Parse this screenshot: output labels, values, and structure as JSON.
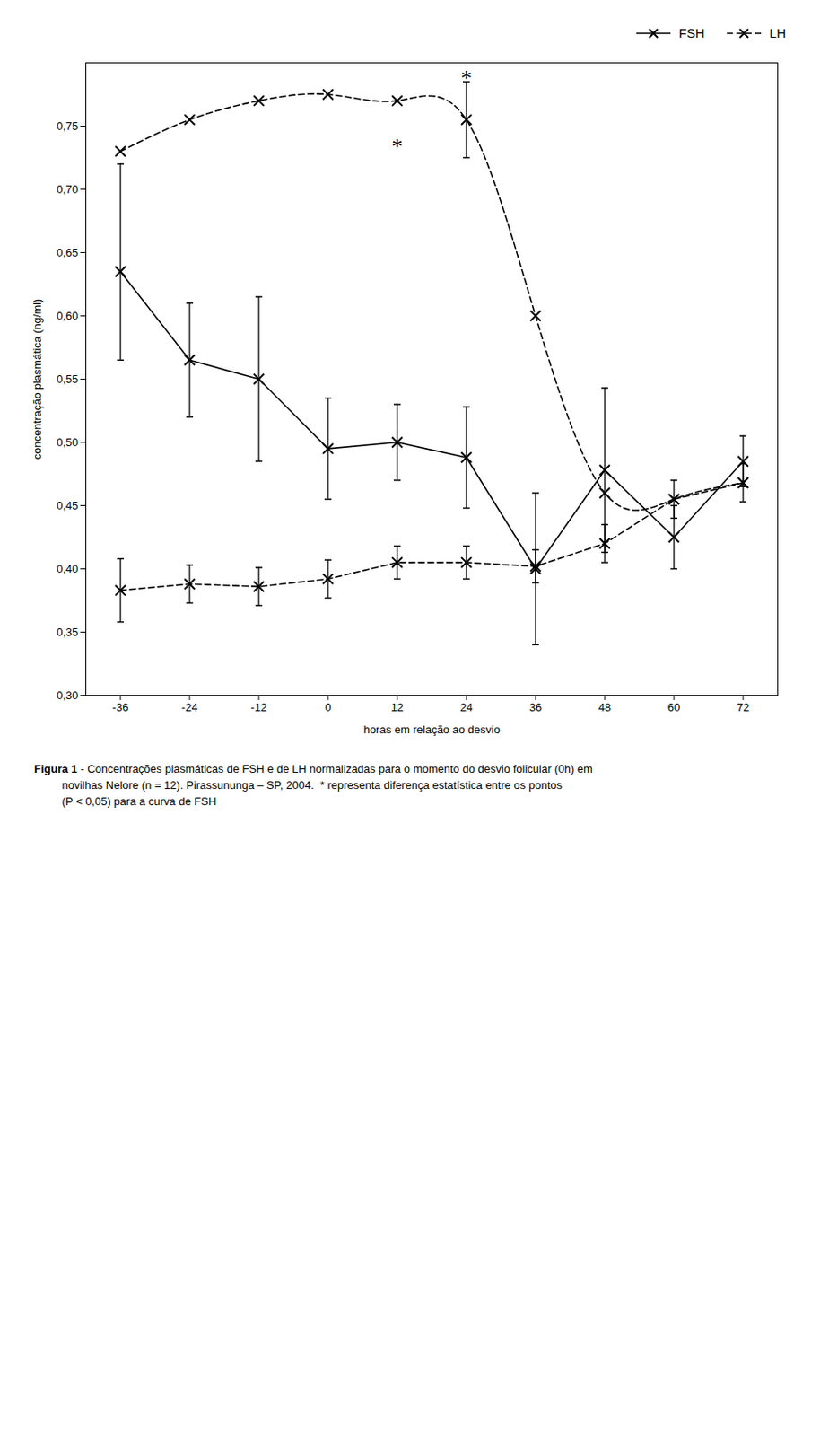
{
  "chart_data": {
    "type": "line",
    "xlabel": "horas em relação ao desvio",
    "ylabel": "concentração plasmática (ng/ml)",
    "x": [
      -36,
      -24,
      -12,
      0,
      12,
      24,
      36,
      48,
      60,
      72
    ],
    "xlim": [
      -42,
      78
    ],
    "xticks": [
      -36,
      -24,
      -12,
      0,
      12,
      24,
      36,
      48,
      60,
      72
    ],
    "ylim": [
      0.3,
      0.8
    ],
    "yticks": [
      {
        "value": 0.3,
        "label": "0,30"
      },
      {
        "value": 0.35,
        "label": "0,35"
      },
      {
        "value": 0.4,
        "label": "0,40"
      },
      {
        "value": 0.45,
        "label": "0,45"
      },
      {
        "value": 0.5,
        "label": "0,50"
      },
      {
        "value": 0.55,
        "label": "0,55"
      },
      {
        "value": 0.6,
        "label": "0,60"
      },
      {
        "value": 0.65,
        "label": "0,65"
      },
      {
        "value": 0.7,
        "label": "0,70"
      },
      {
        "value": 0.75,
        "label": "0,75"
      }
    ],
    "grid": false,
    "legend": "upper right",
    "series": [
      {
        "name": "FSH",
        "type": "line",
        "color": "#000000",
        "marker": "x",
        "line_style": "solid",
        "values": [
          0.635,
          0.565,
          0.55,
          0.495,
          0.5,
          0.488,
          0.4,
          0.478,
          0.425,
          0.485
        ],
        "yerr_low": [
          0.07,
          0.045,
          0.065,
          0.04,
          0.03,
          0.04,
          0.06,
          0.065,
          0.025,
          0.02
        ],
        "yerr_high": [
          0.085,
          0.045,
          0.065,
          0.04,
          0.03,
          0.04,
          0.06,
          0.065,
          0.025,
          0.02
        ]
      },
      {
        "name": "LH",
        "type": "line",
        "color": "#000000",
        "marker": "x",
        "line_style": "dashed",
        "values": [
          0.383,
          0.388,
          0.386,
          0.392,
          0.405,
          0.405,
          0.402,
          0.42,
          0.455,
          0.468
        ],
        "yerr_low": [
          0.025,
          0.015,
          0.015,
          0.015,
          0.013,
          0.013,
          0.013,
          0.015,
          0.015,
          0.015
        ],
        "yerr_high": [
          0.025,
          0.015,
          0.015,
          0.015,
          0.013,
          0.013,
          0.013,
          0.015,
          0.015,
          0.015
        ]
      },
      {
        "name": "LH",
        "type": "spline",
        "color": "#000000",
        "marker": "x",
        "line_style": "dashed",
        "values": [
          0.73,
          0.755,
          0.77,
          0.775,
          0.77,
          0.755,
          0.6,
          0.46,
          0.455,
          0.468
        ],
        "yerr_low": [
          null,
          null,
          null,
          null,
          null,
          0.03,
          null,
          null,
          null,
          null
        ],
        "yerr_high": [
          null,
          null,
          null,
          null,
          null,
          0.03,
          null,
          null,
          null,
          null
        ]
      }
    ],
    "annotations": [
      {
        "text": "*",
        "x": 12,
        "y": 0.728
      },
      {
        "text": "*",
        "x": 24,
        "y": 0.782
      }
    ],
    "caption_label": "Figura 1",
    "caption": " - Concentrações plasmáticas de FSH e de LH normalizadas para o momento do desvio folicular (0h) em\n         novilhas Nelore (n = 12). Pirassununga – SP, 2004.  * representa diferença estatística entre os pontos\n         (P < 0,05) para a curva de FSH"
  }
}
